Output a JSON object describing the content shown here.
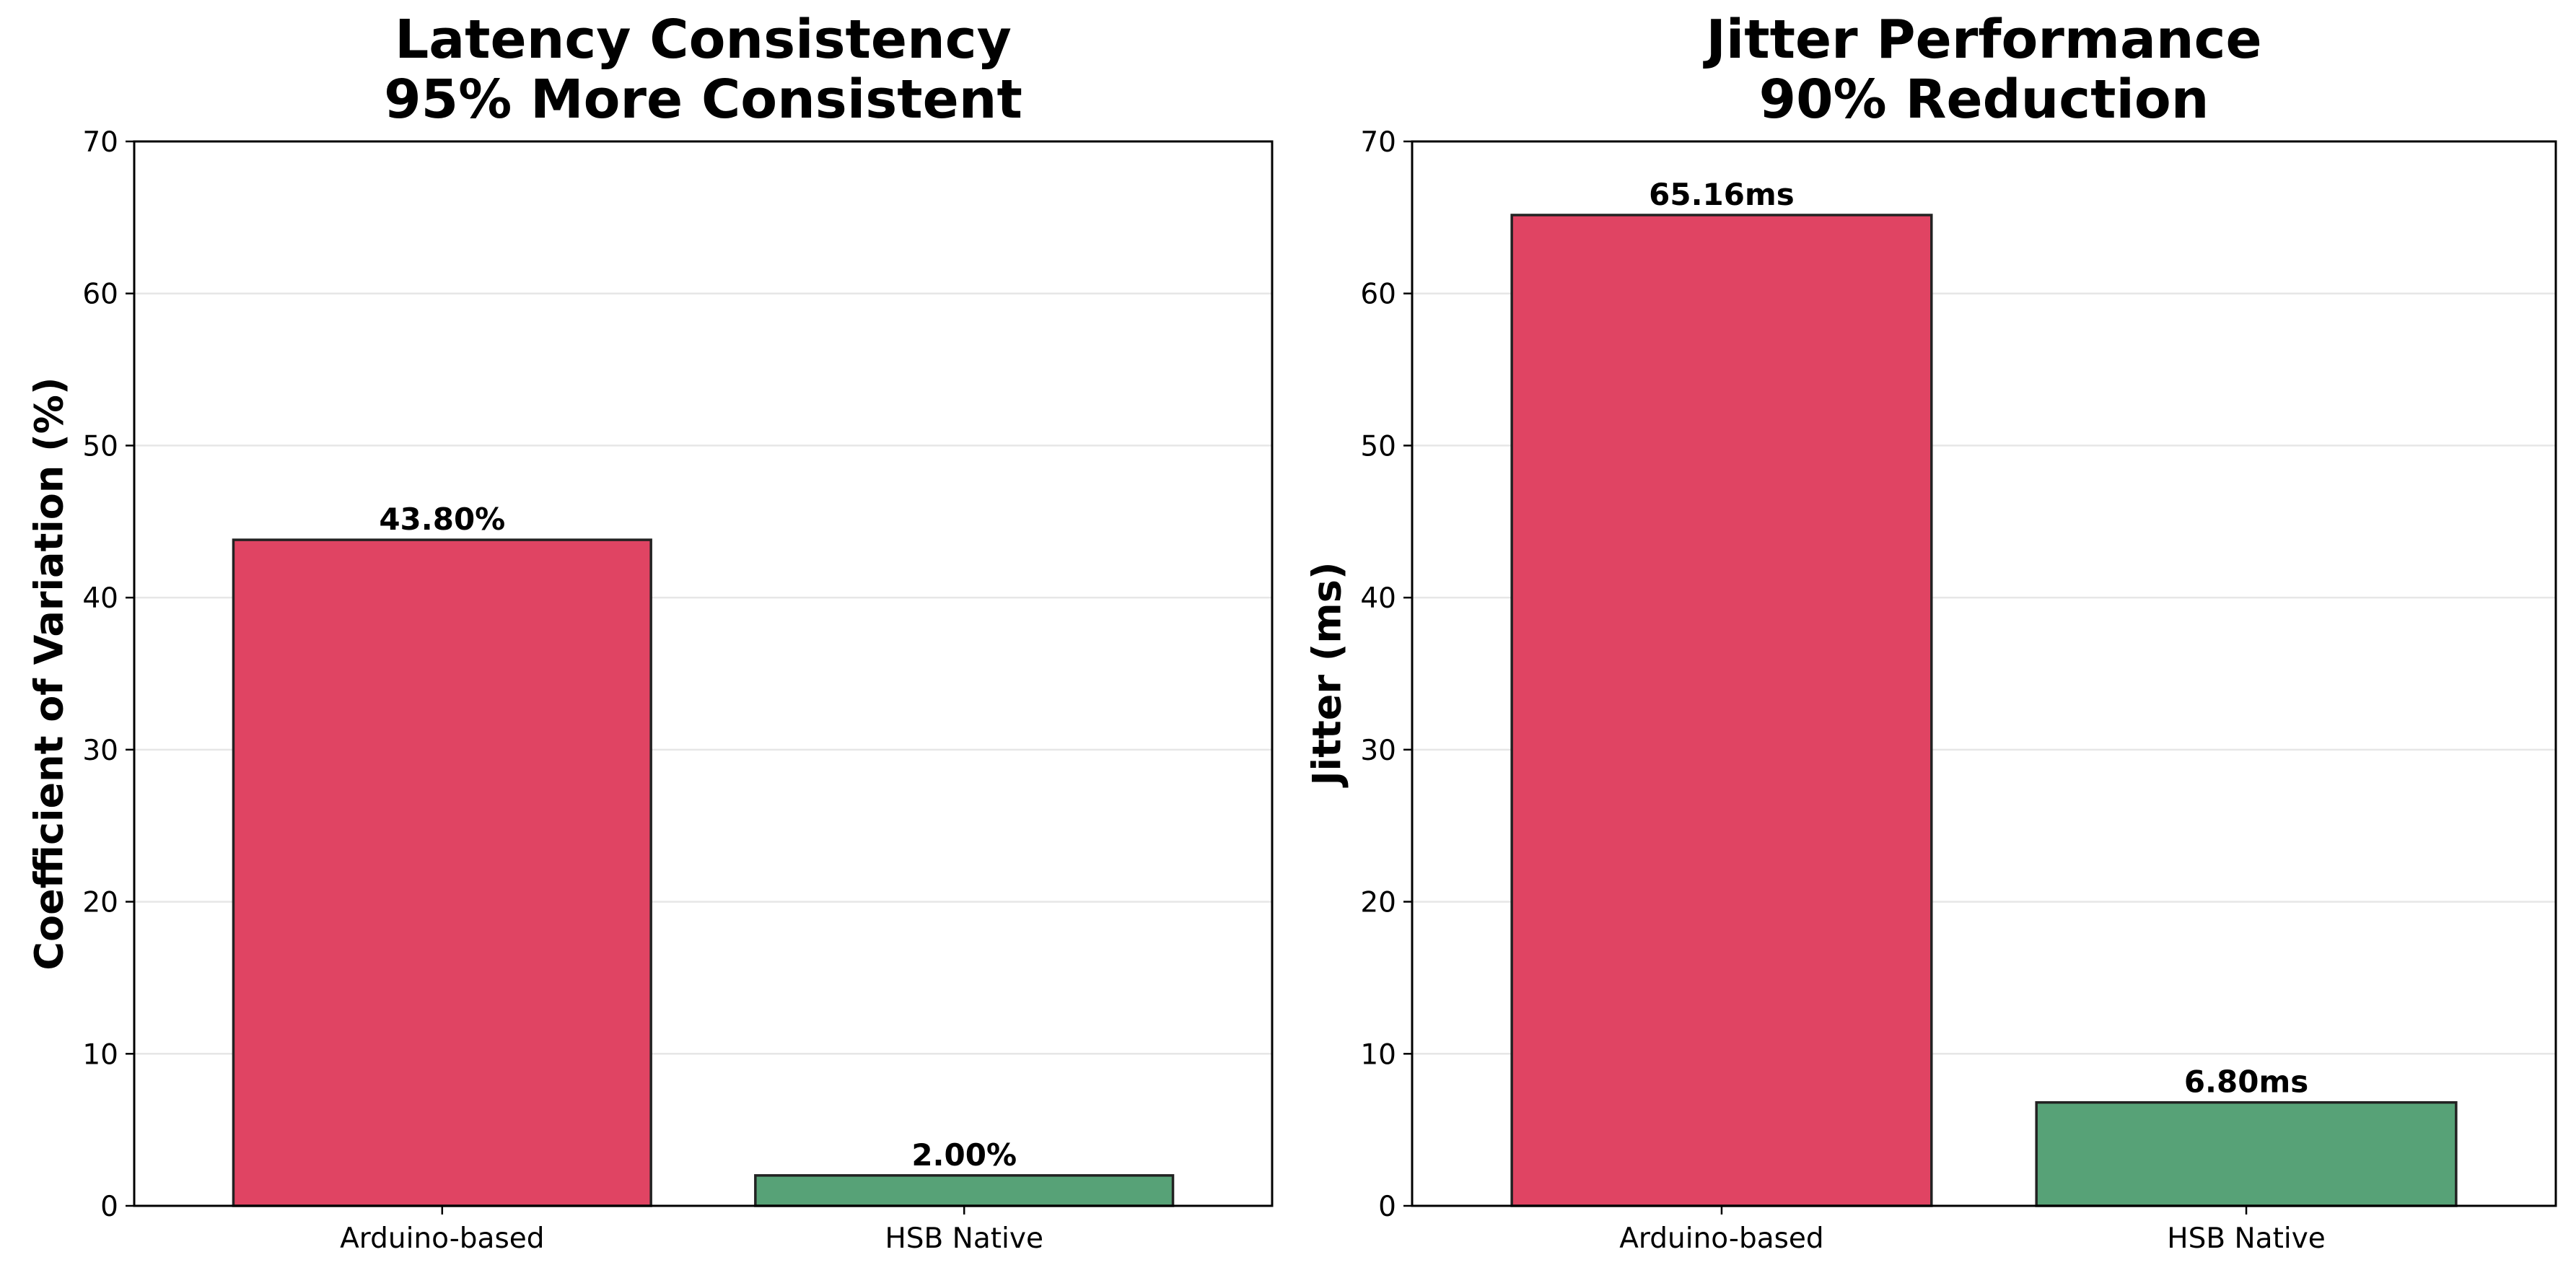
{
  "chart_data": [
    {
      "type": "bar",
      "title_lines": [
        "Latency Consistency",
        "95% More Consistent"
      ],
      "xlabel": "",
      "ylabel": "Coefficient of Variation (%)",
      "categories": [
        "Arduino-based",
        "HSB Native"
      ],
      "values": [
        43.8,
        2.0
      ],
      "value_labels": [
        "43.80%",
        "2.00%"
      ],
      "colors": [
        "#e04463",
        "#57a277"
      ],
      "ylim": [
        0,
        70
      ],
      "yticks": [
        0,
        10,
        20,
        30,
        40,
        50,
        60,
        70
      ],
      "grid": "y"
    },
    {
      "type": "bar",
      "title_lines": [
        "Jitter Performance",
        "90% Reduction"
      ],
      "xlabel": "",
      "ylabel": "Jitter (ms)",
      "categories": [
        "Arduino-based",
        "HSB Native"
      ],
      "values": [
        65.16,
        6.8
      ],
      "value_labels": [
        "65.16ms",
        "6.80ms"
      ],
      "colors": [
        "#e04463",
        "#57a277"
      ],
      "ylim": [
        0,
        70
      ],
      "yticks": [
        0,
        10,
        20,
        30,
        40,
        50,
        60,
        70
      ],
      "grid": "y"
    }
  ]
}
